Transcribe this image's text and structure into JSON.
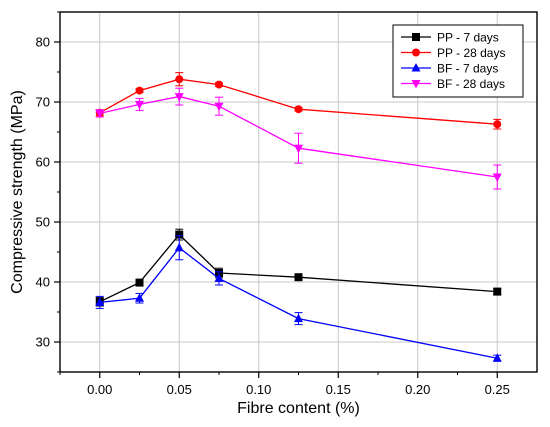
{
  "chart_data": {
    "type": "line",
    "title": "",
    "xlabel": "Fibre content (%)",
    "ylabel": "Compressive strength (MPa)",
    "xlim": [
      -0.025,
      0.275
    ],
    "ylim": [
      25,
      85
    ],
    "xticks": [
      0.0,
      0.05,
      0.1,
      0.15,
      0.2,
      0.25
    ],
    "xtick_labels": [
      "0.00",
      "0.05",
      "0.10",
      "0.15",
      "0.20",
      "0.25"
    ],
    "yticks": [
      30,
      40,
      50,
      60,
      70,
      80
    ],
    "ytick_labels": [
      "30",
      "40",
      "50",
      "60",
      "70",
      "80"
    ],
    "grid": true,
    "legend_position": "top-right",
    "series": [
      {
        "name": "PP - 7 days",
        "color": "#000000",
        "marker": "square",
        "x": [
          0.0,
          0.025,
          0.05,
          0.075,
          0.125,
          0.25
        ],
        "y": [
          36.7,
          39.9,
          47.9,
          41.5,
          40.8,
          38.4
        ],
        "err": [
          0.7,
          0.4,
          0.9,
          0.8,
          0.3,
          0.5
        ]
      },
      {
        "name": "PP - 28 days",
        "color": "#ff0000",
        "marker": "circle",
        "x": [
          0.0,
          0.025,
          0.05,
          0.075,
          0.125,
          0.25
        ],
        "y": [
          68.2,
          71.9,
          73.8,
          72.9,
          68.8,
          66.3
        ],
        "err": [
          0.5,
          0.3,
          1.1,
          0.3,
          0.3,
          0.8
        ]
      },
      {
        "name": "BF - 7 days",
        "color": "#0000ff",
        "marker": "triangle-up",
        "x": [
          0.0,
          0.025,
          0.05,
          0.075,
          0.125,
          0.25
        ],
        "y": [
          36.6,
          37.3,
          45.7,
          40.6,
          33.9,
          27.3
        ],
        "err": [
          1.0,
          0.8,
          2.0,
          1.1,
          1.0,
          0.5
        ]
      },
      {
        "name": "BF - 28 days",
        "color": "#ff00ff",
        "marker": "triangle-down",
        "x": [
          0.0,
          0.025,
          0.05,
          0.075,
          0.125,
          0.25
        ],
        "y": [
          68.1,
          69.6,
          70.9,
          69.3,
          62.3,
          57.5
        ],
        "err": [
          0.6,
          1.0,
          1.4,
          1.5,
          2.5,
          2.0
        ]
      }
    ]
  }
}
